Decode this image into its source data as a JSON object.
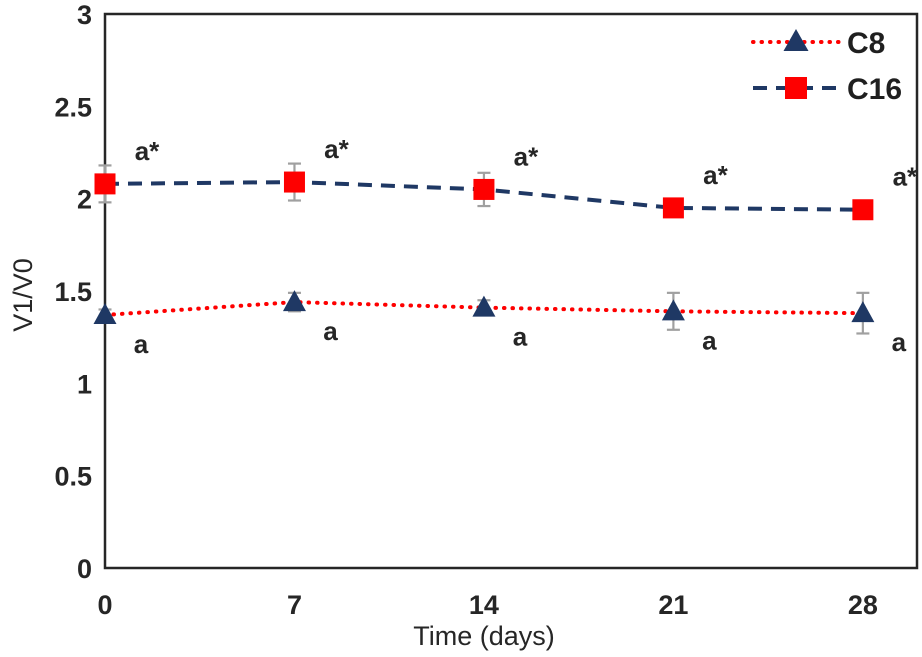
{
  "chart_data": {
    "type": "line",
    "title": "",
    "xlabel": "Time (days)",
    "ylabel": "V1/V0",
    "x": [
      0,
      7,
      14,
      21,
      28
    ],
    "xticks": [
      "0",
      "7",
      "14",
      "21",
      "28"
    ],
    "yticks": [
      "0",
      "0.5",
      "1",
      "1.5",
      "2",
      "2.5",
      "3"
    ],
    "ytick_values": [
      0,
      0.5,
      1,
      1.5,
      2,
      2.5,
      3
    ],
    "xlim": [
      0,
      30
    ],
    "ylim": [
      0,
      3
    ],
    "grid": false,
    "legend_position": "top-right",
    "series": [
      {
        "name": "C8",
        "values": [
          1.37,
          1.44,
          1.41,
          1.39,
          1.38
        ],
        "errors": [
          0.03,
          0.05,
          0.04,
          0.1,
          0.11
        ],
        "marker": "triangle",
        "marker_color": "#1f3864",
        "line_color": "#fe0000",
        "line_style": "dotted",
        "point_labels": [
          "a",
          "a",
          "a",
          "a",
          "a"
        ],
        "label_side": "below"
      },
      {
        "name": "C16",
        "values": [
          2.08,
          2.09,
          2.05,
          1.95,
          1.94
        ],
        "errors": [
          0.1,
          0.1,
          0.09,
          0.02,
          0.03
        ],
        "marker": "square",
        "marker_color": "#fe0000",
        "line_color": "#1f3864",
        "line_style": "dashed",
        "point_labels": [
          "a*",
          "a*",
          "a*",
          "a*",
          "a*"
        ],
        "label_side": "above"
      }
    ]
  },
  "legend": {
    "items": [
      {
        "label": "C8"
      },
      {
        "label": "C16"
      }
    ]
  },
  "colors": {
    "red": "#fe0000",
    "navy": "#1f3864",
    "error_bar": "#a0a0a0",
    "axis": "#262626",
    "text": "#262626",
    "background": "#ffffff"
  }
}
